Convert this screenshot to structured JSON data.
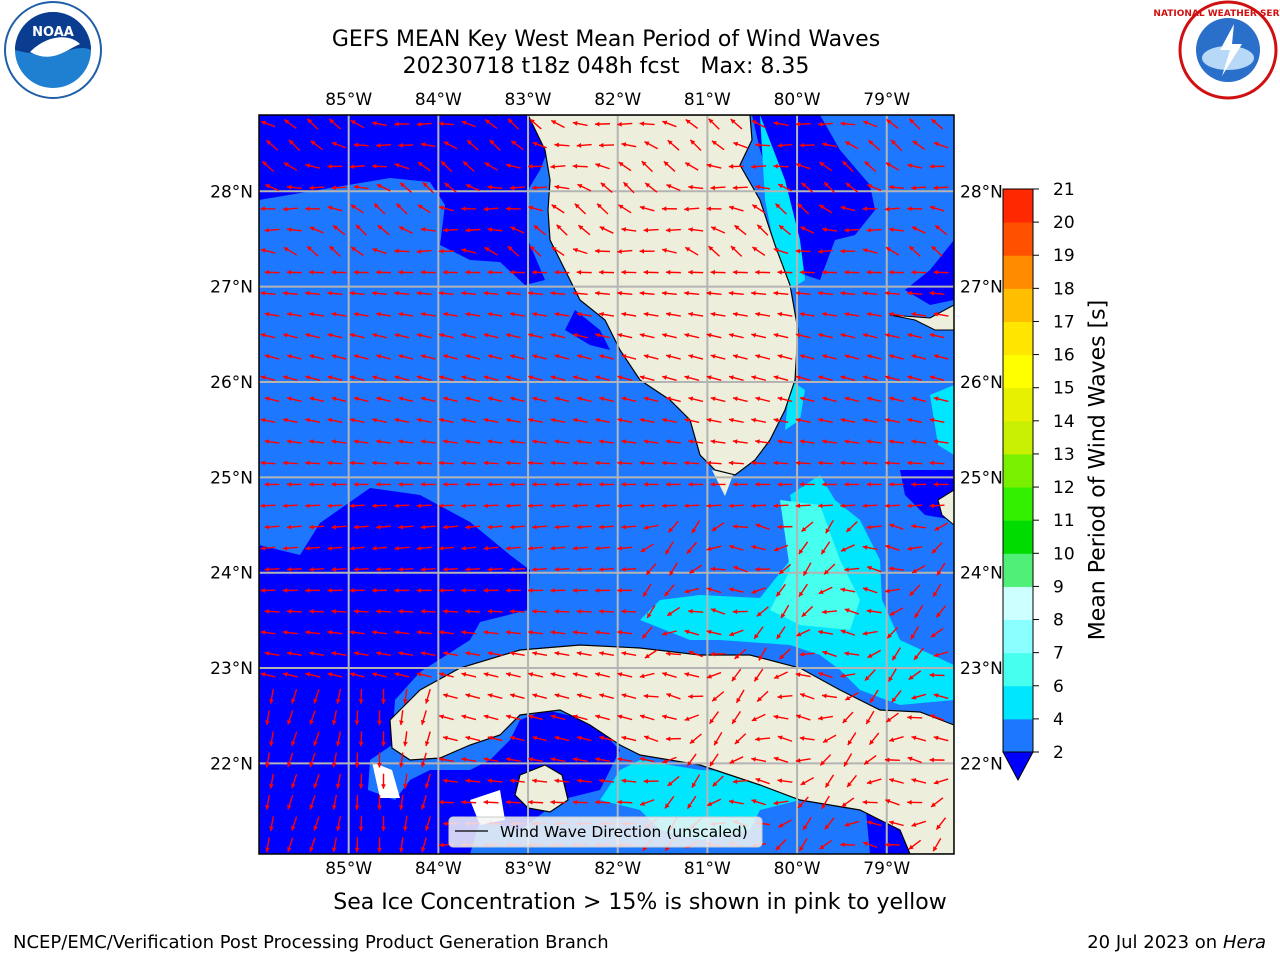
{
  "title_line1": "GEFS MEAN Key West Mean Period of Wind Waves",
  "title_line2": "20230718 t18z 048h fcst   Max: 8.35",
  "logos": {
    "left": "noaa-logo",
    "right": "national-weather-service-logo"
  },
  "map": {
    "lon_range": [
      -86.0,
      -78.25
    ],
    "lat_range": [
      21.05,
      28.8
    ],
    "lon_ticks": [
      {
        "value": -85,
        "label": "85°W"
      },
      {
        "value": -84,
        "label": "84°W"
      },
      {
        "value": -83,
        "label": "83°W"
      },
      {
        "value": -82,
        "label": "82°W"
      },
      {
        "value": -81,
        "label": "81°W"
      },
      {
        "value": -80,
        "label": "80°W"
      },
      {
        "value": -79,
        "label": "79°W"
      }
    ],
    "lat_ticks": [
      {
        "value": 28,
        "label": "28°N"
      },
      {
        "value": 27,
        "label": "27°N"
      },
      {
        "value": 26,
        "label": "26°N"
      },
      {
        "value": 25,
        "label": "25°N"
      },
      {
        "value": 24,
        "label": "24°N"
      },
      {
        "value": 23,
        "label": "23°N"
      },
      {
        "value": 22,
        "label": "22°N"
      }
    ],
    "gridlines": true,
    "ocean_color": "#1e78ff",
    "land_color": "#eeeedc",
    "arrow_color": "#ff0000"
  },
  "legend": {
    "line_label": "Wind Wave Direction (unscaled)",
    "placement": "bottom-center"
  },
  "colorbar": {
    "title": "Mean Period of Wind Waves [s]",
    "levels": [
      2,
      4,
      6,
      7,
      8,
      9,
      10,
      11,
      12,
      13,
      14,
      15,
      16,
      17,
      18,
      19,
      20,
      21
    ],
    "tick_labels": [
      "2",
      "4",
      "6",
      "7",
      "8",
      "9",
      "10",
      "11",
      "12",
      "13",
      "14",
      "15",
      "16",
      "17",
      "18",
      "19",
      "20",
      "21"
    ],
    "under_color": "#0000ff",
    "colors": [
      "#1e78ff",
      "#00e6ff",
      "#46ffee",
      "#8affff",
      "#ccffff",
      "#50f078",
      "#00dc00",
      "#32f000",
      "#78f000",
      "#c8f000",
      "#e6f000",
      "#ffff00",
      "#ffe600",
      "#ffbe00",
      "#ff8c00",
      "#ff5000",
      "#ff2800",
      "#ff0000"
    ]
  },
  "sea_ice_note": "Sea Ice Concentration > 15% is shown in pink to yellow",
  "footer_left": "NCEP/EMC/Verification Post Processing Product Generation Branch",
  "footer_right_date": "20 Jul 2023 on ",
  "footer_right_host": "Hera"
}
